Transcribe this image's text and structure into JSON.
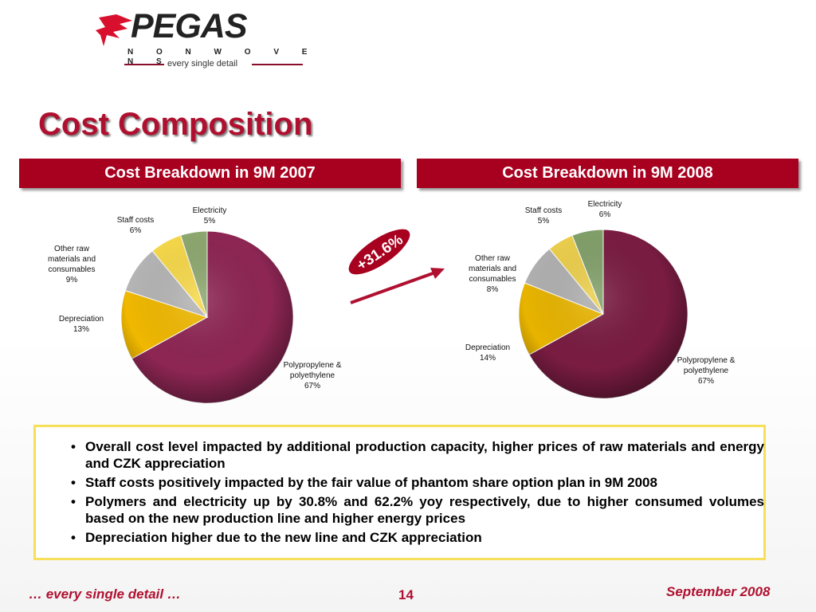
{
  "logo": {
    "name": "PEGAS",
    "sub": "N O N W O V E N S",
    "tagline": "every single detail"
  },
  "title": "Cost Composition",
  "panels": [
    {
      "heading": "Cost Breakdown in 9M 2007"
    },
    {
      "heading": "Cost Breakdown in 9M 2008"
    }
  ],
  "growth_badge": "+31.6%",
  "chart_data": [
    {
      "type": "pie",
      "title": "Cost Breakdown in 9M 2007",
      "slices": [
        {
          "label": "Polypropylene & polyethylene",
          "label_lines": [
            "Polypropylene &",
            "polyethylene"
          ],
          "value": 67,
          "value_label": "67%",
          "color": "#8e2654"
        },
        {
          "label": "Depreciation",
          "label_lines": [
            "Depreciation"
          ],
          "value": 13,
          "value_label": "13%",
          "color": "#f0b800"
        },
        {
          "label": "Other raw materials and consumables",
          "label_lines": [
            "Other raw",
            "materials and",
            "consumables"
          ],
          "value": 9,
          "value_label": "9%",
          "color": "#b5b5b5"
        },
        {
          "label": "Staff costs",
          "label_lines": [
            "Staff costs"
          ],
          "value": 6,
          "value_label": "6%",
          "color": "#f6d84a"
        },
        {
          "label": "Electricity",
          "label_lines": [
            "Electricity"
          ],
          "value": 5,
          "value_label": "5%",
          "color": "#8ea870"
        }
      ]
    },
    {
      "type": "pie",
      "title": "Cost Breakdown in 9M 2008",
      "slices": [
        {
          "label": "Polypropylene & polyethylene",
          "label_lines": [
            "Polypropylene &",
            "polyethylene"
          ],
          "value": 67,
          "value_label": "67%",
          "color": "#7a1c42"
        },
        {
          "label": "Depreciation",
          "label_lines": [
            "Depreciation"
          ],
          "value": 14,
          "value_label": "14%",
          "color": "#e8b400"
        },
        {
          "label": "Other raw materials and consumables",
          "label_lines": [
            "Other raw",
            "materials and",
            "consumables"
          ],
          "value": 8,
          "value_label": "8%",
          "color": "#b0b0b0"
        },
        {
          "label": "Staff costs",
          "label_lines": [
            "Staff costs"
          ],
          "value": 5,
          "value_label": "5%",
          "color": "#eccf4c"
        },
        {
          "label": "Electricity",
          "label_lines": [
            "Electricity"
          ],
          "value": 6,
          "value_label": "6%",
          "color": "#82a06a"
        }
      ]
    }
  ],
  "bullets": [
    "Overall cost level impacted by additional production capacity, higher prices of raw materials and energy and CZK appreciation",
    "Staff costs positively impacted by the fair value of phantom share option plan in 9M 2008",
    "Polymers and electricity up by 30.8% and 62.2% yoy respectively, due to higher consumed volumes based on the new production line and higher energy prices",
    "Depreciation higher due to the new line and CZK appreciation"
  ],
  "footer": {
    "tagline": "… every single detail …",
    "page": "14",
    "date": "September 2008"
  }
}
